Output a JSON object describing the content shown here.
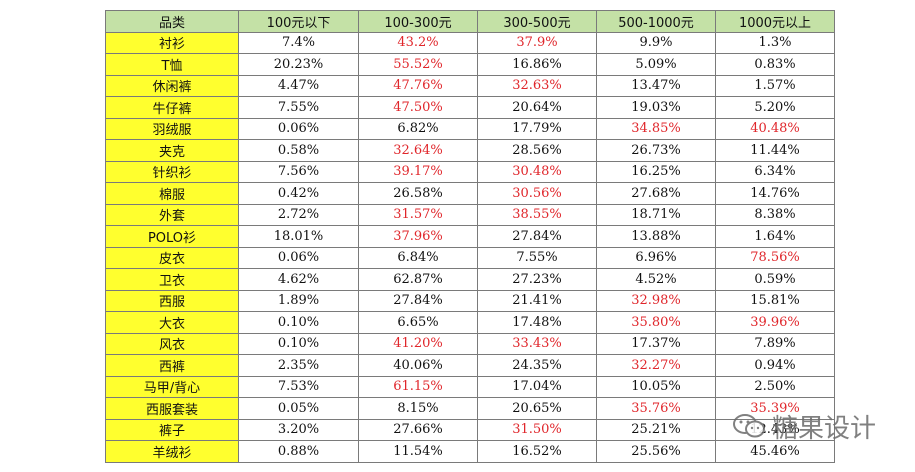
{
  "headers": [
    "品类",
    "100元以下",
    "100-300元",
    "300-500元",
    "500-1000元",
    "1000元以上"
  ],
  "colors": {
    "header_bg": "#c4e1a6",
    "category_bg": "#ffff2e",
    "highlight_text": "#e0262b"
  },
  "rows": [
    {
      "cat": "衬衫",
      "v": [
        "7.4%",
        "43.2%",
        "37.9%",
        "9.9%",
        "1.3%"
      ],
      "hl": [
        false,
        true,
        true,
        false,
        false
      ]
    },
    {
      "cat": "T恤",
      "v": [
        "20.23%",
        "55.52%",
        "16.86%",
        "5.09%",
        "0.83%"
      ],
      "hl": [
        false,
        true,
        false,
        false,
        false
      ]
    },
    {
      "cat": "休闲裤",
      "v": [
        "4.47%",
        "47.76%",
        "32.63%",
        "13.47%",
        "1.57%"
      ],
      "hl": [
        false,
        true,
        true,
        false,
        false
      ]
    },
    {
      "cat": "牛仔裤",
      "v": [
        "7.55%",
        "47.50%",
        "20.64%",
        "19.03%",
        "5.20%"
      ],
      "hl": [
        false,
        true,
        false,
        false,
        false
      ]
    },
    {
      "cat": "羽绒服",
      "v": [
        "0.06%",
        "6.82%",
        "17.79%",
        "34.85%",
        "40.48%"
      ],
      "hl": [
        false,
        false,
        false,
        true,
        true
      ]
    },
    {
      "cat": "夹克",
      "v": [
        "0.58%",
        "32.64%",
        "28.56%",
        "26.73%",
        "11.44%"
      ],
      "hl": [
        false,
        true,
        false,
        false,
        false
      ]
    },
    {
      "cat": "针织衫",
      "v": [
        "7.56%",
        "39.17%",
        "30.48%",
        "16.25%",
        "6.34%"
      ],
      "hl": [
        false,
        true,
        true,
        false,
        false
      ]
    },
    {
      "cat": "棉服",
      "v": [
        "0.42%",
        "26.58%",
        "30.56%",
        "27.68%",
        "14.76%"
      ],
      "hl": [
        false,
        false,
        true,
        false,
        false
      ]
    },
    {
      "cat": "外套",
      "v": [
        "2.72%",
        "31.57%",
        "38.55%",
        "18.71%",
        "8.38%"
      ],
      "hl": [
        false,
        true,
        true,
        false,
        false
      ]
    },
    {
      "cat": "POLO衫",
      "v": [
        "18.01%",
        "37.96%",
        "27.84%",
        "13.88%",
        "1.64%"
      ],
      "hl": [
        false,
        true,
        false,
        false,
        false
      ]
    },
    {
      "cat": "皮衣",
      "v": [
        "0.06%",
        "6.84%",
        "7.55%",
        "6.96%",
        "78.56%"
      ],
      "hl": [
        false,
        false,
        false,
        false,
        true
      ]
    },
    {
      "cat": "卫衣",
      "v": [
        "4.62%",
        "62.87%",
        "27.23%",
        "4.52%",
        "0.59%"
      ],
      "hl": [
        false,
        false,
        false,
        false,
        false
      ]
    },
    {
      "cat": "西服",
      "v": [
        "1.89%",
        "27.84%",
        "21.41%",
        "32.98%",
        "15.81%"
      ],
      "hl": [
        false,
        false,
        false,
        true,
        false
      ]
    },
    {
      "cat": "大衣",
      "v": [
        "0.10%",
        "6.65%",
        "17.48%",
        "35.80%",
        "39.96%"
      ],
      "hl": [
        false,
        false,
        false,
        true,
        true
      ]
    },
    {
      "cat": "风衣",
      "v": [
        "0.10%",
        "41.20%",
        "33.43%",
        "17.37%",
        "7.89%"
      ],
      "hl": [
        false,
        true,
        true,
        false,
        false
      ]
    },
    {
      "cat": "西裤",
      "v": [
        "2.35%",
        "40.06%",
        "24.35%",
        "32.27%",
        "0.94%"
      ],
      "hl": [
        false,
        false,
        false,
        true,
        false
      ]
    },
    {
      "cat": "马甲/背心",
      "v": [
        "7.53%",
        "61.15%",
        "17.04%",
        "10.05%",
        "2.50%"
      ],
      "hl": [
        false,
        true,
        false,
        false,
        false
      ]
    },
    {
      "cat": "西服套装",
      "v": [
        "0.05%",
        "8.15%",
        "20.65%",
        "35.76%",
        "35.39%"
      ],
      "hl": [
        false,
        false,
        false,
        true,
        true
      ]
    },
    {
      "cat": "裤子",
      "v": [
        "3.20%",
        "27.66%",
        "31.50%",
        "25.21%",
        "12.43%"
      ],
      "hl": [
        false,
        false,
        true,
        false,
        false
      ]
    },
    {
      "cat": "羊绒衫",
      "v": [
        "0.88%",
        "11.54%",
        "16.52%",
        "25.56%",
        "45.46%"
      ],
      "hl": [
        false,
        false,
        false,
        false,
        false
      ]
    }
  ],
  "watermark": {
    "text": "糖果设计",
    "icon": "wechat-icon"
  }
}
